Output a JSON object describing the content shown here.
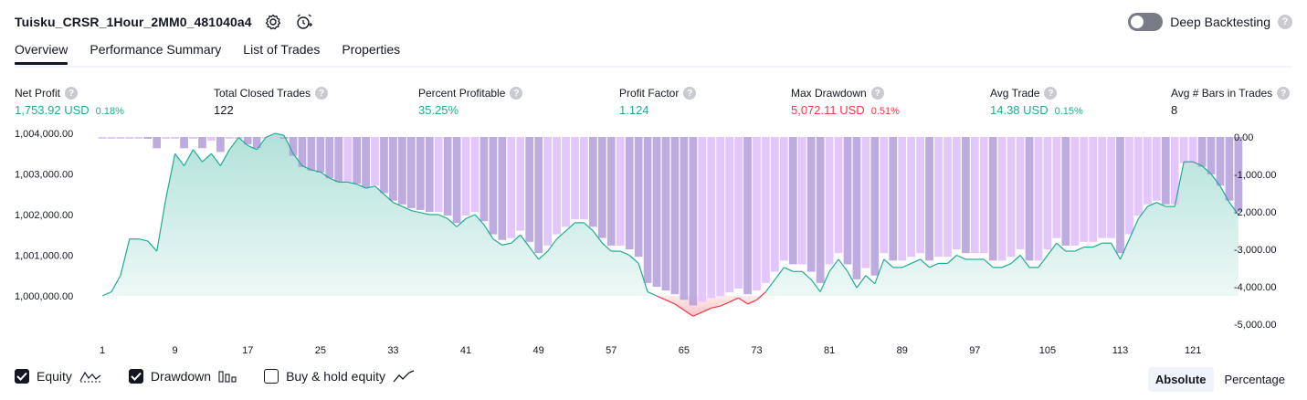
{
  "header": {
    "strategy_name": "Tuisku_CRSR_1Hour_2MM0_481040a4",
    "deep_backtesting_label": "Deep Backtesting",
    "help_glyph": "?"
  },
  "tabs": [
    {
      "label": "Overview",
      "active": true
    },
    {
      "label": "Performance Summary",
      "active": false
    },
    {
      "label": "List of Trades",
      "active": false
    },
    {
      "label": "Properties",
      "active": false
    }
  ],
  "metrics": {
    "net_profit": {
      "label": "Net Profit",
      "value": "1,753.92 USD",
      "pct": "0.18%",
      "color": "#22ab94"
    },
    "total_closed_trades": {
      "label": "Total Closed Trades",
      "value": "122"
    },
    "percent_profitable": {
      "label": "Percent Profitable",
      "value": "35.25%",
      "color": "#22ab94"
    },
    "profit_factor": {
      "label": "Profit Factor",
      "value": "1.124",
      "color": "#22ab94"
    },
    "max_drawdown": {
      "label": "Max Drawdown",
      "value": "5,072.11 USD",
      "pct": "0.51%",
      "color": "#f23645"
    },
    "avg_trade": {
      "label": "Avg Trade",
      "value": "14.38 USD",
      "pct": "0.15%",
      "color": "#22ab94"
    },
    "avg_bars": {
      "label": "Avg # Bars in Trades",
      "value": "8"
    }
  },
  "legend": {
    "equity_label": "Equity",
    "drawdown_label": "Drawdown",
    "buy_hold_label": "Buy & hold equity",
    "equity_checked": true,
    "drawdown_checked": true,
    "buy_hold_checked": false
  },
  "modes": {
    "absolute": "Absolute",
    "percentage": "Percentage",
    "active": "absolute"
  },
  "chart_data": {
    "type": "area",
    "x_ticks": [
      1,
      9,
      17,
      25,
      33,
      41,
      49,
      57,
      65,
      73,
      81,
      89,
      97,
      105,
      113,
      121
    ],
    "x_range": [
      1,
      124
    ],
    "left_axis": {
      "ticks": [
        1000000,
        1001000,
        1002000,
        1003000,
        1004000
      ],
      "tick_labels": [
        "1,000,000.00",
        "1,001,000.00",
        "1,002,000.00",
        "1,003,000.00",
        "1,004,000.00"
      ],
      "range": [
        998800,
        1004200
      ]
    },
    "right_axis": {
      "ticks": [
        0,
        -1000,
        -2000,
        -3000,
        -4000,
        -5000
      ],
      "tick_labels": [
        "0.00",
        "-1,000.00",
        "-2,000.00",
        "-3,000.00",
        "-4,000.00",
        "-5,000.00"
      ],
      "range": [
        -5200,
        0
      ]
    },
    "baseline": 1000000,
    "equity": [
      1000000,
      1000100,
      1000500,
      1001400,
      1001400,
      1001350,
      1001100,
      1002400,
      1003500,
      1003200,
      1003600,
      1003300,
      1003500,
      1003200,
      1003600,
      1003900,
      1003700,
      1003600,
      1003900,
      1004000,
      1003950,
      1003500,
      1003200,
      1003100,
      1003050,
      1002900,
      1002800,
      1002800,
      1002750,
      1002650,
      1002700,
      1002500,
      1002300,
      1002200,
      1002100,
      1002050,
      1002000,
      1002000,
      1001900,
      1001700,
      1001900,
      1002000,
      1001750,
      1001400,
      1001250,
      1001300,
      1001500,
      1001200,
      1000900,
      1001100,
      1001400,
      1001600,
      1001800,
      1001800,
      1001600,
      1001300,
      1001100,
      1001100,
      1001000,
      1000800,
      1000100,
      1000000,
      999900,
      999800,
      999650,
      999500,
      999600,
      999700,
      999750,
      999850,
      999950,
      999800,
      999900,
      1000100,
      1000400,
      1000700,
      1000600,
      1000600,
      1000400,
      1000100,
      1000600,
      1000900,
      1000600,
      1000200,
      1000500,
      1000300,
      1000900,
      1000700,
      1000700,
      1000800,
      1000900,
      1000700,
      1000800,
      1000800,
      1001000,
      1000900,
      1000900,
      1000900,
      1000700,
      1000700,
      1000800,
      1001000,
      1000700,
      1000700,
      1001000,
      1001300,
      1001100,
      1001100,
      1001200,
      1001200,
      1001300,
      1001300,
      1000900,
      1001400,
      1001900,
      1002200,
      1002300,
      1002200,
      1002200,
      1003300,
      1003300,
      1003200,
      1003000,
      1002700,
      1002300,
      1002000
    ]
  }
}
